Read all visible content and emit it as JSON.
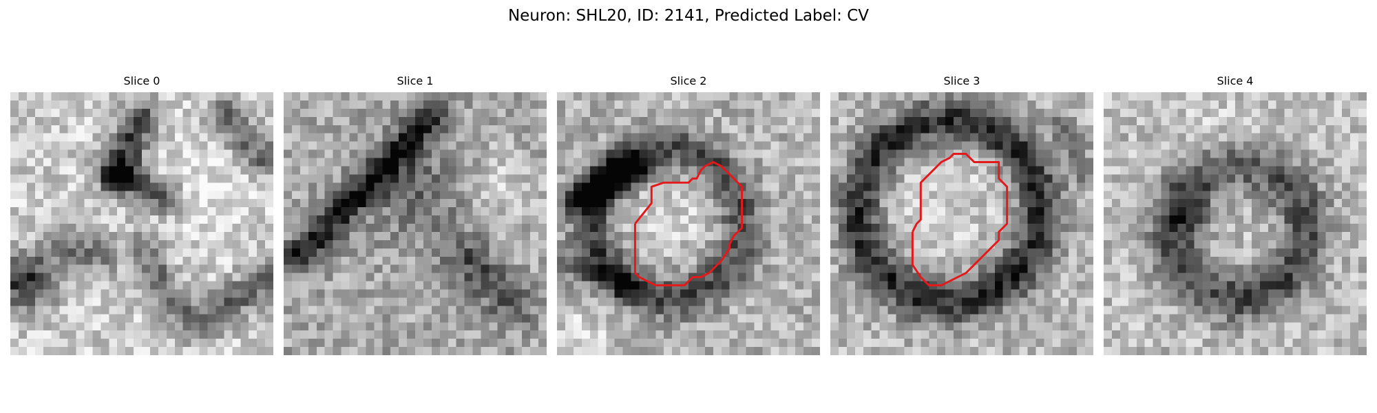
{
  "figure": {
    "title": "Neuron: SHL20, ID: 2141, Predicted Label: CV",
    "contour_color": "#e31a1c"
  },
  "slices": [
    {
      "title": "Slice 0",
      "has_contour": false
    },
    {
      "title": "Slice 1",
      "has_contour": false
    },
    {
      "title": "Slice 2",
      "has_contour": true
    },
    {
      "title": "Slice 3",
      "has_contour": true
    },
    {
      "title": "Slice 4",
      "has_contour": false
    }
  ]
}
